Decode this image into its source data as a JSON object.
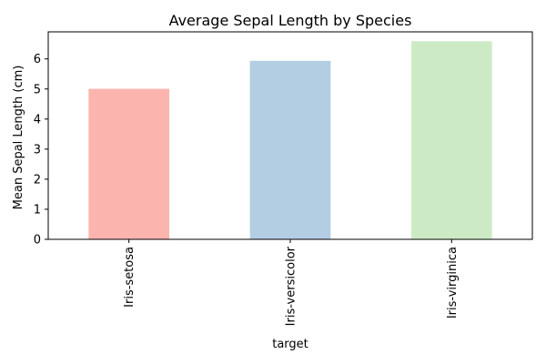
{
  "chart_data": {
    "type": "bar",
    "title": "Average Sepal Length by Species",
    "xlabel": "target",
    "ylabel": "Mean Sepal Length (cm)",
    "categories": [
      "Iris-setosa",
      "Iris-versicolor",
      "Iris-virginica"
    ],
    "values": [
      5.006,
      5.936,
      6.588
    ],
    "ylim": [
      0,
      6.9
    ],
    "yticks": [
      0,
      1,
      2,
      3,
      4,
      5,
      6
    ],
    "colors": [
      "#fbb4ae",
      "#b3cde3",
      "#ccebc5"
    ],
    "grid": false,
    "legend": "none"
  }
}
